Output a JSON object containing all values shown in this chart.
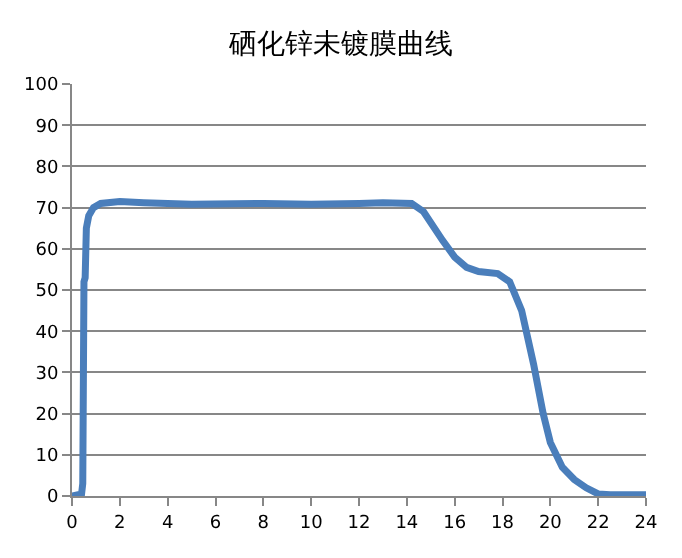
{
  "chart_data": {
    "type": "line",
    "title": "硒化锌未镀膜曲线",
    "x": [
      0,
      0.4,
      0.45,
      0.5,
      0.55,
      0.6,
      0.7,
      0.9,
      1.2,
      2,
      3,
      5,
      8,
      10,
      12,
      13,
      14.2,
      14.7,
      15.5,
      16,
      16.5,
      17,
      17.8,
      18.3,
      18.8,
      19.3,
      19.7,
      20,
      20.5,
      21,
      21.5,
      22,
      22.5,
      24
    ],
    "series": [
      {
        "color": "#4a7ebb",
        "values": [
          0,
          0.5,
          3,
          52,
          53,
          65,
          68,
          70,
          71,
          71.5,
          71.2,
          70.8,
          71,
          70.8,
          71,
          71.2,
          71,
          69,
          62,
          58,
          55.5,
          54.5,
          54,
          52,
          45,
          32,
          20,
          13,
          7,
          4,
          2,
          0.5,
          0.3,
          0.3
        ]
      }
    ],
    "xlim": [
      0,
      24
    ],
    "xticks": [
      0,
      2,
      4,
      6,
      8,
      10,
      12,
      14,
      16,
      18,
      20,
      22,
      24
    ],
    "ylim": [
      0,
      100
    ],
    "yticks": [
      0,
      10,
      20,
      30,
      40,
      50,
      60,
      70,
      80,
      90,
      100
    ],
    "grid": "y",
    "marker": "none",
    "line_style": "solid"
  }
}
